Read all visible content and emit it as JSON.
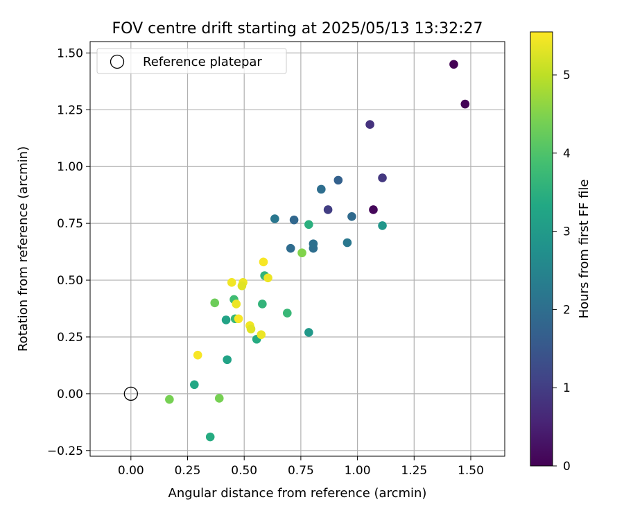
{
  "chart_data": {
    "type": "scatter",
    "title": "FOV centre drift starting at 2025/05/13 13:32:27",
    "xlabel": "Angular distance from reference (arcmin)",
    "ylabel": "Rotation from reference (arcmin)",
    "xlim": [
      -0.18,
      1.65
    ],
    "ylim": [
      -0.275,
      1.55
    ],
    "x_ticks": [
      0.0,
      0.25,
      0.5,
      0.75,
      1.0,
      1.25,
      1.5
    ],
    "x_tick_labels": [
      "0.00",
      "0.25",
      "0.50",
      "0.75",
      "1.00",
      "1.25",
      "1.50"
    ],
    "y_ticks": [
      -0.25,
      0.0,
      0.25,
      0.5,
      0.75,
      1.0,
      1.25,
      1.5
    ],
    "y_tick_labels": [
      "−0.25",
      "0.00",
      "0.25",
      "0.50",
      "0.75",
      "1.00",
      "1.25",
      "1.50"
    ],
    "grid": true,
    "legend": {
      "position": "top-left",
      "entries": [
        "Reference platepar"
      ]
    },
    "reference_point": {
      "x": 0.0,
      "y": 0.0
    },
    "colorbar": {
      "label": "Hours from first FF file",
      "range": [
        0,
        5.55
      ],
      "ticks": [
        0,
        1,
        2,
        3,
        4,
        5
      ],
      "tick_labels": [
        "0",
        "1",
        "2",
        "3",
        "4",
        "5"
      ],
      "colormap": "viridis"
    },
    "points": [
      {
        "x": 1.425,
        "y": 1.45,
        "h": 0.0
      },
      {
        "x": 1.475,
        "y": 1.275,
        "h": 0.05
      },
      {
        "x": 1.07,
        "y": 0.81,
        "h": 0.1
      },
      {
        "x": 1.055,
        "y": 1.185,
        "h": 0.8
      },
      {
        "x": 1.11,
        "y": 0.95,
        "h": 0.9
      },
      {
        "x": 0.87,
        "y": 0.81,
        "h": 1.0
      },
      {
        "x": 0.915,
        "y": 0.94,
        "h": 1.7
      },
      {
        "x": 0.84,
        "y": 0.9,
        "h": 2.0
      },
      {
        "x": 0.975,
        "y": 0.78,
        "h": 1.9
      },
      {
        "x": 0.72,
        "y": 0.765,
        "h": 1.85
      },
      {
        "x": 0.635,
        "y": 0.77,
        "h": 2.2
      },
      {
        "x": 0.705,
        "y": 0.64,
        "h": 1.95
      },
      {
        "x": 0.805,
        "y": 0.64,
        "h": 2.0
      },
      {
        "x": 0.805,
        "y": 0.66,
        "h": 2.05
      },
      {
        "x": 0.955,
        "y": 0.665,
        "h": 2.2
      },
      {
        "x": 1.11,
        "y": 0.74,
        "h": 2.9
      },
      {
        "x": 0.785,
        "y": 0.745,
        "h": 3.5
      },
      {
        "x": 0.785,
        "y": 0.27,
        "h": 2.95
      },
      {
        "x": 0.59,
        "y": 0.52,
        "h": 3.6
      },
      {
        "x": 0.58,
        "y": 0.395,
        "h": 3.6
      },
      {
        "x": 0.69,
        "y": 0.355,
        "h": 3.7
      },
      {
        "x": 0.555,
        "y": 0.24,
        "h": 3.4
      },
      {
        "x": 0.42,
        "y": 0.325,
        "h": 3.2
      },
      {
        "x": 0.425,
        "y": 0.15,
        "h": 3.2
      },
      {
        "x": 0.455,
        "y": 0.415,
        "h": 3.8
      },
      {
        "x": 0.46,
        "y": 0.33,
        "h": 3.7
      },
      {
        "x": 0.28,
        "y": 0.04,
        "h": 3.3
      },
      {
        "x": 0.35,
        "y": -0.19,
        "h": 3.4
      },
      {
        "x": 0.39,
        "y": -0.02,
        "h": 4.4
      },
      {
        "x": 0.37,
        "y": 0.4,
        "h": 4.3
      },
      {
        "x": 0.17,
        "y": -0.025,
        "h": 4.4
      },
      {
        "x": 0.755,
        "y": 0.62,
        "h": 4.5
      },
      {
        "x": 0.585,
        "y": 0.58,
        "h": 5.5
      },
      {
        "x": 0.605,
        "y": 0.51,
        "h": 5.4
      },
      {
        "x": 0.495,
        "y": 0.49,
        "h": 5.4
      },
      {
        "x": 0.49,
        "y": 0.475,
        "h": 5.3
      },
      {
        "x": 0.445,
        "y": 0.49,
        "h": 5.45
      },
      {
        "x": 0.465,
        "y": 0.395,
        "h": 5.4
      },
      {
        "x": 0.475,
        "y": 0.33,
        "h": 5.5
      },
      {
        "x": 0.525,
        "y": 0.3,
        "h": 5.45
      },
      {
        "x": 0.53,
        "y": 0.285,
        "h": 5.3
      },
      {
        "x": 0.575,
        "y": 0.26,
        "h": 5.4
      },
      {
        "x": 0.295,
        "y": 0.17,
        "h": 5.5
      }
    ]
  }
}
